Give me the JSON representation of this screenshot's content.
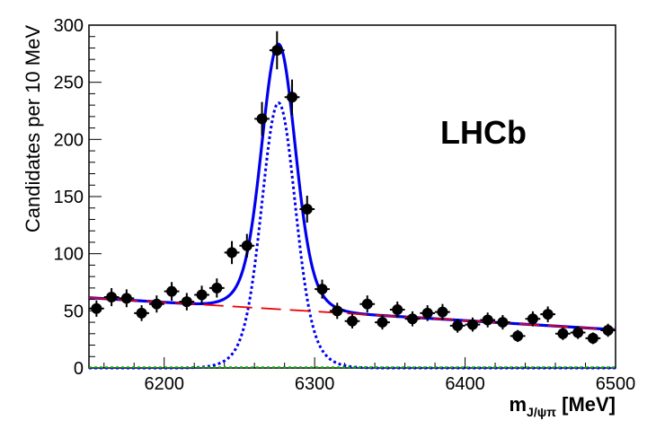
{
  "chart_data": {
    "type": "scatter",
    "title": "",
    "annotation": "LHCb",
    "xlabel": {
      "main": "m",
      "subscript": "J/ψπ",
      "unit": " [MeV]"
    },
    "ylabel": "Candidates per 10 MeV",
    "xlim": [
      6150,
      6500
    ],
    "ylim": [
      0,
      300
    ],
    "x_ticks": [
      6200,
      6300,
      6400,
      6500
    ],
    "y_ticks": [
      0,
      50,
      100,
      150,
      200,
      250,
      300
    ],
    "bin_width": 10,
    "points": {
      "x": [
        6155,
        6165,
        6175,
        6185,
        6195,
        6205,
        6215,
        6225,
        6235,
        6245,
        6255,
        6265,
        6275,
        6285,
        6295,
        6305,
        6315,
        6325,
        6335,
        6345,
        6355,
        6365,
        6375,
        6385,
        6395,
        6405,
        6415,
        6425,
        6435,
        6445,
        6455,
        6465,
        6475,
        6485,
        6495
      ],
      "y": [
        52,
        62,
        61,
        48,
        56,
        67,
        58,
        64,
        70,
        101,
        107,
        218,
        278,
        237,
        139,
        69,
        50,
        41,
        56,
        40,
        51,
        43,
        48,
        49,
        37,
        38,
        42,
        40,
        28,
        43,
        47,
        30,
        31,
        26,
        33
      ]
    },
    "series": [
      {
        "name": "Total fit",
        "style": "solid",
        "color": "#0000ee"
      },
      {
        "name": "Signal",
        "style": "dotted",
        "color": "#0000ee"
      },
      {
        "name": "Background",
        "style": "dashed",
        "color": "#ee0000"
      },
      {
        "name": "Other background",
        "style": "dotted",
        "color": "#00aa00"
      }
    ],
    "model": {
      "background": {
        "y_at_6150": 61.5,
        "y_at_6500": 33.5
      },
      "signal": {
        "mean": 6276,
        "peak": 232,
        "core_sigma": 10.5,
        "tail_sigma": 18,
        "tail_fraction": 0.18
      }
    }
  }
}
